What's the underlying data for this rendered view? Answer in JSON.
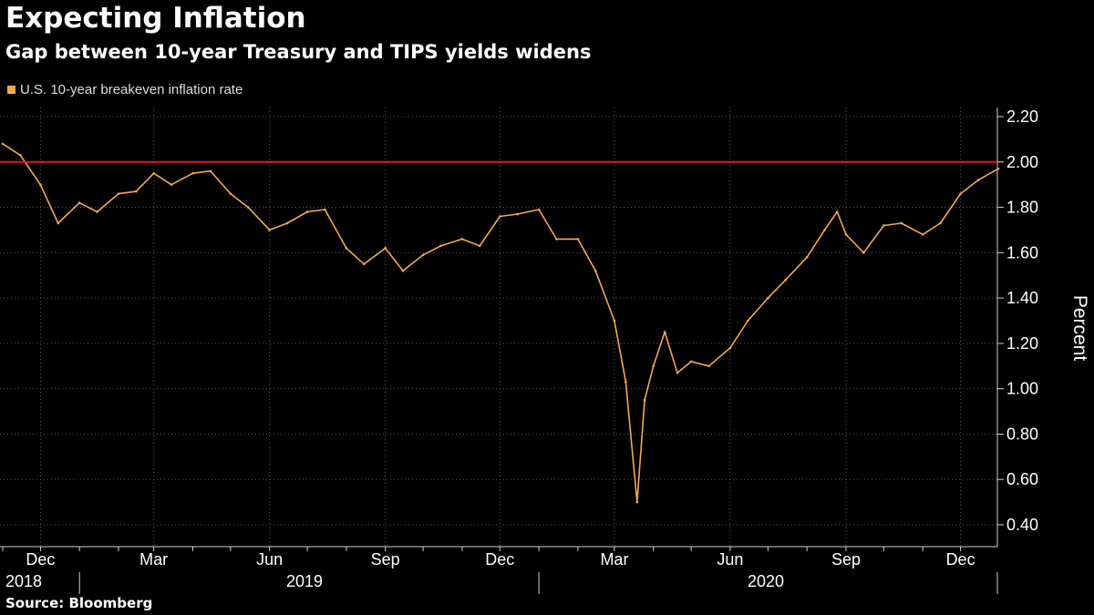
{
  "title": "Expecting Inflation",
  "subtitle": "Gap between 10-year Treasury and TIPS yields widens",
  "legend": {
    "label": "U.S. 10-year breakeven inflation rate"
  },
  "source": "Source: Bloomberg",
  "colors": {
    "background": "#000000",
    "series": "#f5a94f",
    "reference_line": "#e0161b",
    "grid": "#5a5a5a",
    "axis": "#cfcfcf"
  },
  "chart_data": {
    "type": "line",
    "ylabel": "Percent",
    "ylim": [
      0.4,
      2.2
    ],
    "y_ticks": [
      "0.40",
      "0.60",
      "0.80",
      "1.00",
      "1.20",
      "1.40",
      "1.60",
      "1.80",
      "2.00",
      "2.20"
    ],
    "y_axis_position": "right",
    "reference_line": {
      "y": 2.0
    },
    "x_month_ticks": [
      "Dec",
      "Mar",
      "Jun",
      "Sep",
      "Dec",
      "Mar",
      "Jun",
      "Sep",
      "Dec"
    ],
    "x_year_labels": [
      "2018",
      "2019",
      "2020"
    ],
    "grid": true,
    "legend_position": "top-left",
    "series": [
      {
        "name": "U.S. 10-year breakeven inflation rate",
        "x": [
          "2018-11-01",
          "2018-11-15",
          "2018-12-01",
          "2018-12-15",
          "2019-01-01",
          "2019-01-15",
          "2019-02-01",
          "2019-02-15",
          "2019-03-01",
          "2019-03-15",
          "2019-04-01",
          "2019-04-15",
          "2019-05-01",
          "2019-05-15",
          "2019-06-01",
          "2019-06-15",
          "2019-07-01",
          "2019-07-15",
          "2019-08-01",
          "2019-08-15",
          "2019-09-01",
          "2019-09-15",
          "2019-10-01",
          "2019-10-15",
          "2019-11-01",
          "2019-11-15",
          "2019-12-01",
          "2019-12-15",
          "2020-01-01",
          "2020-01-15",
          "2020-02-01",
          "2020-02-15",
          "2020-03-01",
          "2020-03-10",
          "2020-03-19",
          "2020-03-25",
          "2020-04-01",
          "2020-04-10",
          "2020-04-20",
          "2020-05-01",
          "2020-05-15",
          "2020-06-01",
          "2020-06-15",
          "2020-07-01",
          "2020-07-15",
          "2020-08-01",
          "2020-08-15",
          "2020-08-25",
          "2020-09-01",
          "2020-09-15",
          "2020-10-01",
          "2020-10-15",
          "2020-11-01",
          "2020-11-15",
          "2020-12-01",
          "2020-12-15",
          "2020-12-31"
        ],
        "y": [
          2.08,
          2.03,
          1.9,
          1.73,
          1.82,
          1.78,
          1.86,
          1.87,
          1.95,
          1.9,
          1.95,
          1.96,
          1.86,
          1.8,
          1.7,
          1.73,
          1.78,
          1.79,
          1.62,
          1.55,
          1.62,
          1.52,
          1.59,
          1.63,
          1.66,
          1.63,
          1.76,
          1.77,
          1.79,
          1.66,
          1.66,
          1.52,
          1.3,
          1.03,
          0.5,
          0.95,
          1.1,
          1.25,
          1.07,
          1.12,
          1.1,
          1.18,
          1.3,
          1.4,
          1.48,
          1.58,
          1.7,
          1.78,
          1.68,
          1.6,
          1.72,
          1.73,
          1.68,
          1.73,
          1.86,
          1.92,
          1.97
        ]
      }
    ]
  }
}
